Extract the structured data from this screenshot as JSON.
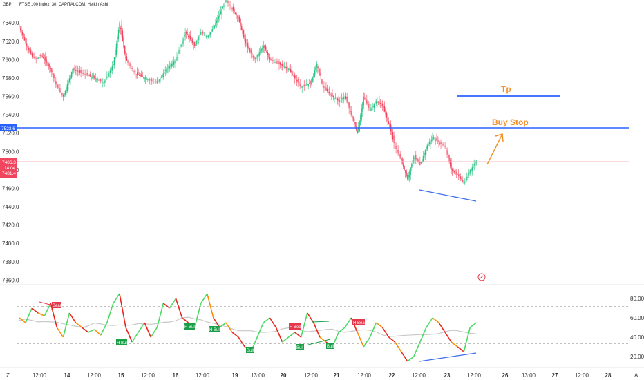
{
  "header": {
    "currency": "GBP",
    "title": "FTSE 100 Index, 30, CAPITALCOM, Heikin Ashi"
  },
  "price_tags": {
    "buy_stop_level": "7522.6",
    "current_price": "7486.3",
    "countdown": "14:04",
    "secondary": "7481.4"
  },
  "annotations": {
    "tp": "Tp",
    "buy_stop": "Buy Stop"
  },
  "oscillator_labels": {
    "bear1": "Bear",
    "hbull1": "H Bull",
    "hbull2": "H Bull",
    "hbull3": "H Bull",
    "bull1": "Bull",
    "hbear1": "H Bear",
    "bull2": "Bull",
    "bull3": "Bull",
    "hbear2": "H Bear"
  },
  "bottom_bar": {
    "left_button": "Z",
    "right_button": "A"
  },
  "colors": {
    "up": "#26c281",
    "down": "#f0455d",
    "blue_line": "#2962ff",
    "orange": "#f0912b",
    "osc_green": "#4cd964",
    "osc_red": "#e8261c",
    "osc_orange": "#ff8c00",
    "osc_gray": "#c8c8c8",
    "badge_green": "#1a9e47",
    "badge_red": "#e5384b"
  },
  "chart_data": [
    {
      "type": "candlestick",
      "title": "FTSE 100 Index, 30, CAPITALCOM, Heikin Ashi",
      "ylim": [
        7355,
        7665
      ],
      "y_ticks": [
        7360,
        7380,
        7400,
        7420,
        7440,
        7460,
        7480,
        7500,
        7520,
        7540,
        7560,
        7580,
        7600,
        7620,
        7640
      ],
      "x_ticks": [
        "12:00",
        "14",
        "12:00",
        "15",
        "12:00",
        "16",
        "12:00",
        "19",
        "13:00",
        "20",
        "12:00",
        "21",
        "12:00",
        "22",
        "12:00",
        "23",
        "12:00",
        "26",
        "13:00",
        "27",
        "12:00",
        "28"
      ],
      "price_path": [
        [
          0,
          7635
        ],
        [
          3,
          7610
        ],
        [
          5,
          7600
        ],
        [
          7,
          7605
        ],
        [
          10,
          7590
        ],
        [
          12,
          7570
        ],
        [
          14,
          7560
        ],
        [
          17,
          7590
        ],
        [
          20,
          7585
        ],
        [
          24,
          7580
        ],
        [
          27,
          7575
        ],
        [
          30,
          7595
        ],
        [
          32,
          7640
        ],
        [
          34,
          7600
        ],
        [
          37,
          7585
        ],
        [
          40,
          7580
        ],
        [
          44,
          7575
        ],
        [
          47,
          7590
        ],
        [
          50,
          7600
        ],
        [
          53,
          7630
        ],
        [
          56,
          7615
        ],
        [
          58,
          7630
        ],
        [
          60,
          7625
        ],
        [
          62,
          7635
        ],
        [
          64,
          7650
        ],
        [
          66,
          7665
        ],
        [
          68,
          7655
        ],
        [
          70,
          7645
        ],
        [
          72,
          7620
        ],
        [
          75,
          7600
        ],
        [
          78,
          7615
        ],
        [
          80,
          7600
        ],
        [
          83,
          7595
        ],
        [
          86,
          7590
        ],
        [
          88,
          7580
        ],
        [
          90,
          7570
        ],
        [
          93,
          7575
        ],
        [
          95,
          7595
        ],
        [
          97,
          7570
        ],
        [
          100,
          7560
        ],
        [
          102,
          7555
        ],
        [
          104,
          7560
        ],
        [
          106,
          7540
        ],
        [
          108,
          7520
        ],
        [
          110,
          7560
        ],
        [
          112,
          7545
        ],
        [
          114,
          7555
        ],
        [
          116,
          7550
        ],
        [
          118,
          7530
        ],
        [
          120,
          7505
        ],
        [
          122,
          7490
        ],
        [
          124,
          7470
        ],
        [
          126,
          7495
        ],
        [
          128,
          7485
        ],
        [
          130,
          7505
        ],
        [
          132,
          7515
        ],
        [
          134,
          7510
        ],
        [
          136,
          7505
        ],
        [
          138,
          7480
        ],
        [
          140,
          7475
        ],
        [
          142,
          7465
        ],
        [
          144,
          7480
        ],
        [
          146,
          7490
        ]
      ],
      "levels": {
        "buy_stop": 7522.6,
        "tp": 7557,
        "current_price": 7486.3
      },
      "divergence_line": [
        [
          124,
          7456
        ],
        [
          140,
          7443
        ]
      ]
    },
    {
      "type": "line",
      "title": "Oscillator",
      "ylim": [
        10,
        90
      ],
      "y_ticks": [
        20,
        40,
        60,
        80
      ],
      "reference_lines": [
        70,
        30
      ],
      "series_path": [
        [
          0,
          60
        ],
        [
          2,
          55
        ],
        [
          4,
          70
        ],
        [
          6,
          65
        ],
        [
          8,
          62
        ],
        [
          10,
          75
        ],
        [
          12,
          50
        ],
        [
          14,
          40
        ],
        [
          16,
          65
        ],
        [
          18,
          55
        ],
        [
          20,
          50
        ],
        [
          22,
          45
        ],
        [
          24,
          48
        ],
        [
          26,
          42
        ],
        [
          28,
          55
        ],
        [
          30,
          75
        ],
        [
          32,
          85
        ],
        [
          34,
          50
        ],
        [
          36,
          35
        ],
        [
          38,
          45
        ],
        [
          40,
          55
        ],
        [
          42,
          40
        ],
        [
          44,
          50
        ],
        [
          46,
          75
        ],
        [
          48,
          70
        ],
        [
          50,
          80
        ],
        [
          52,
          60
        ],
        [
          54,
          55
        ],
        [
          56,
          50
        ],
        [
          58,
          75
        ],
        [
          60,
          85
        ],
        [
          62,
          60
        ],
        [
          64,
          50
        ],
        [
          66,
          55
        ],
        [
          68,
          45
        ],
        [
          70,
          40
        ],
        [
          72,
          30
        ],
        [
          74,
          25
        ],
        [
          76,
          40
        ],
        [
          78,
          55
        ],
        [
          80,
          60
        ],
        [
          82,
          50
        ],
        [
          84,
          35
        ],
        [
          86,
          40
        ],
        [
          88,
          45
        ],
        [
          90,
          40
        ],
        [
          92,
          65
        ],
        [
          94,
          55
        ],
        [
          96,
          40
        ],
        [
          98,
          35
        ],
        [
          100,
          30
        ],
        [
          102,
          45
        ],
        [
          104,
          50
        ],
        [
          106,
          60
        ],
        [
          108,
          45
        ],
        [
          110,
          30
        ],
        [
          112,
          40
        ],
        [
          114,
          55
        ],
        [
          116,
          50
        ],
        [
          118,
          40
        ],
        [
          120,
          35
        ],
        [
          122,
          25
        ],
        [
          124,
          15
        ],
        [
          126,
          20
        ],
        [
          128,
          35
        ],
        [
          130,
          50
        ],
        [
          132,
          60
        ],
        [
          134,
          55
        ],
        [
          136,
          45
        ],
        [
          138,
          35
        ],
        [
          140,
          30
        ],
        [
          142,
          25
        ],
        [
          144,
          50
        ],
        [
          146,
          55
        ]
      ]
    }
  ]
}
